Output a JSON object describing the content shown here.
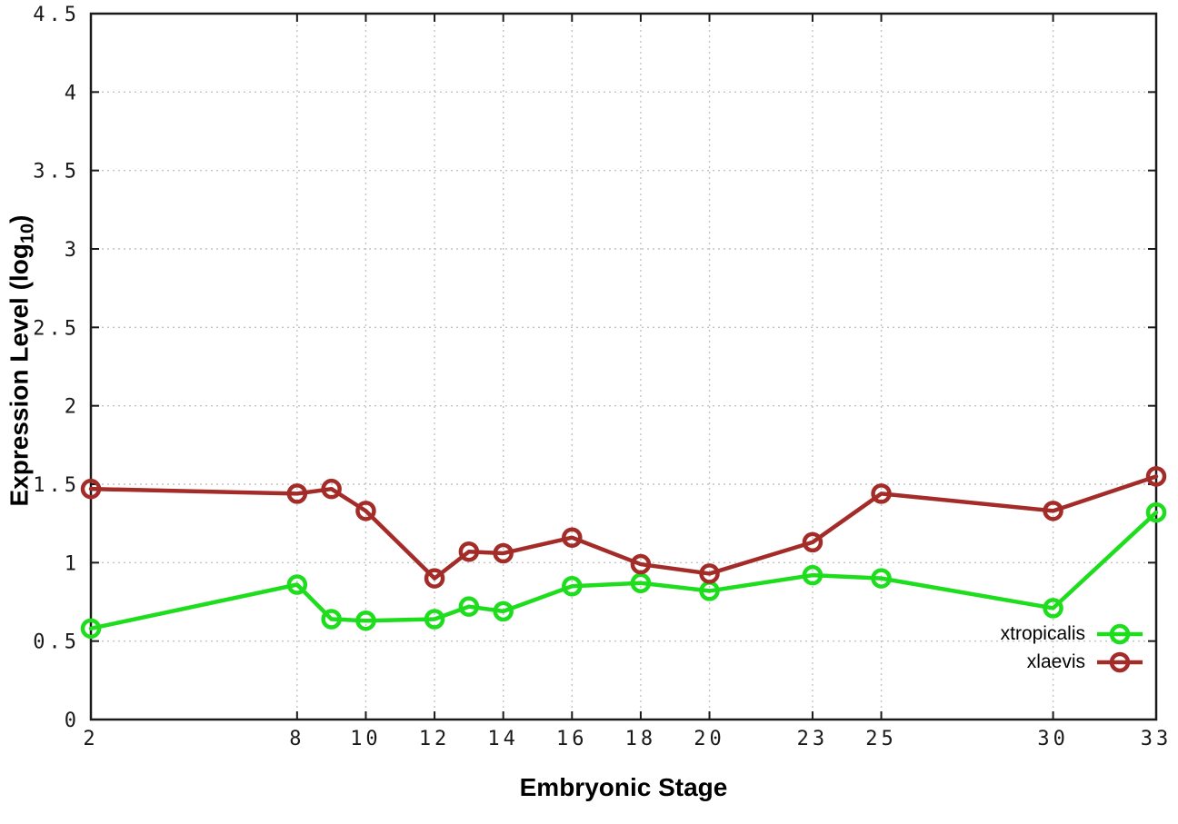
{
  "chart_data": {
    "type": "line",
    "title": "",
    "xlabel": "Embryonic Stage",
    "ylabel": "Expression Level (log10)",
    "ylabel_parts": {
      "main": "Expression Level (log",
      "sub": "10",
      "close": ")"
    },
    "xlim": [
      2,
      33
    ],
    "ylim": [
      0,
      4.5
    ],
    "grid": true,
    "legend_position": "inside-bottom-right",
    "x": [
      2,
      8,
      9,
      10,
      12,
      13,
      14,
      16,
      18,
      20,
      23,
      25,
      30,
      33
    ],
    "xticks": [
      2,
      8,
      10,
      12,
      14,
      16,
      18,
      20,
      23,
      25,
      30,
      33
    ],
    "xtick_labels": [
      "2",
      "8",
      "10",
      "12",
      "14",
      "16",
      "18",
      "20",
      "23",
      "25",
      "30",
      "33"
    ],
    "yticks": [
      0,
      0.5,
      1,
      1.5,
      2,
      2.5,
      3,
      3.5,
      4,
      4.5
    ],
    "ytick_labels": [
      "0",
      "0.5",
      "1",
      "1.5",
      "2",
      "2.5",
      "3",
      "3.5",
      "4",
      "4.5"
    ],
    "series": [
      {
        "name": "xtropicalis",
        "color": "#1ddd1d",
        "values": [
          0.58,
          0.86,
          0.64,
          0.63,
          0.64,
          0.72,
          0.69,
          0.85,
          0.87,
          0.82,
          0.92,
          0.9,
          0.71,
          1.32
        ]
      },
      {
        "name": "xlaevis",
        "color": "#a42c28",
        "values": [
          1.47,
          1.44,
          1.47,
          1.33,
          0.9,
          1.07,
          1.06,
          1.16,
          0.99,
          0.93,
          1.13,
          1.44,
          1.33,
          1.55
        ]
      }
    ],
    "axis_color": "#1a1a1a",
    "grid_color": "#c4c4c4",
    "background": "#ffffff"
  }
}
